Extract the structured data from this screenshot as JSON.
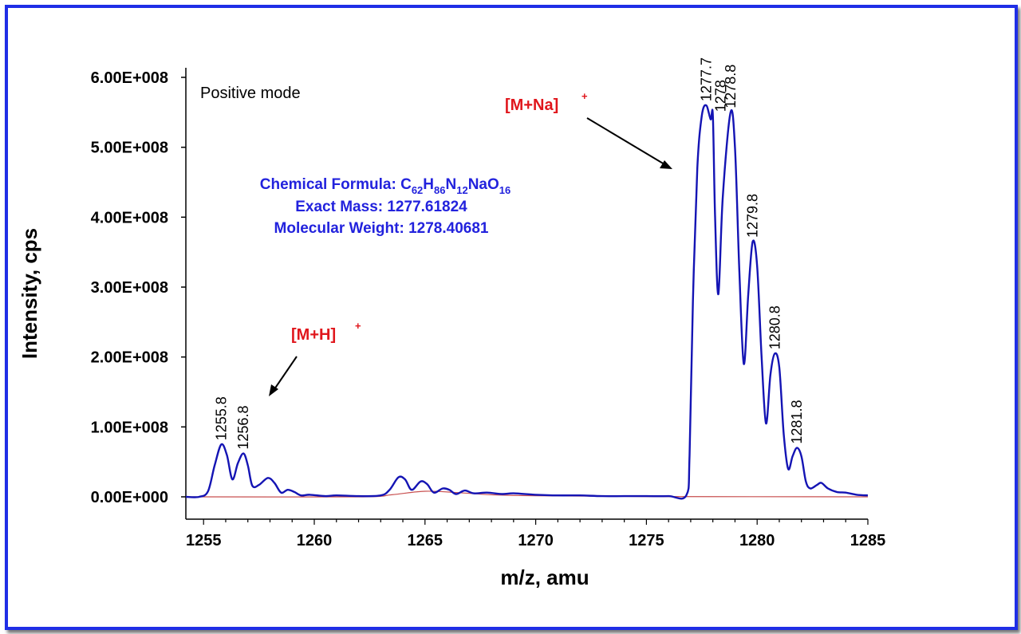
{
  "chart_data": {
    "type": "line",
    "title": "",
    "xlabel": "m/z, amu",
    "ylabel": "Intensity, cps",
    "xlim": [
      1254.2,
      1285
    ],
    "ylim": [
      0,
      600000000
    ],
    "x_ticks": [
      "1255",
      "1260",
      "1265",
      "1270",
      "1275",
      "1280",
      "1285"
    ],
    "y_ticks": [
      "0.00E+000",
      "1.00E+008",
      "2.00E+008",
      "3.00E+008",
      "4.00E+008",
      "5.00E+008",
      "6.00E+008"
    ],
    "grid": false,
    "series": [
      {
        "color": "#1414b4",
        "points": [
          [
            1254.2,
            0
          ],
          [
            1254.8,
            0
          ],
          [
            1255.2,
            8000000
          ],
          [
            1255.5,
            45000000
          ],
          [
            1255.8,
            75000000
          ],
          [
            1256.05,
            60000000
          ],
          [
            1256.3,
            25000000
          ],
          [
            1256.55,
            48000000
          ],
          [
            1256.8,
            62000000
          ],
          [
            1257.0,
            45000000
          ],
          [
            1257.2,
            16000000
          ],
          [
            1257.5,
            17000000
          ],
          [
            1257.9,
            27000000
          ],
          [
            1258.2,
            20000000
          ],
          [
            1258.5,
            6000000
          ],
          [
            1258.8,
            10000000
          ],
          [
            1259.1,
            7000000
          ],
          [
            1259.4,
            2000000
          ],
          [
            1259.8,
            3000000
          ],
          [
            1260.5,
            1000000
          ],
          [
            1261.0,
            2000000
          ],
          [
            1262.0,
            1000000
          ],
          [
            1263.0,
            2000000
          ],
          [
            1263.4,
            10000000
          ],
          [
            1263.8,
            28000000
          ],
          [
            1264.1,
            25000000
          ],
          [
            1264.4,
            10000000
          ],
          [
            1264.8,
            22000000
          ],
          [
            1265.1,
            18000000
          ],
          [
            1265.4,
            6000000
          ],
          [
            1265.8,
            12000000
          ],
          [
            1266.1,
            10000000
          ],
          [
            1266.4,
            4000000
          ],
          [
            1266.8,
            9000000
          ],
          [
            1267.2,
            5000000
          ],
          [
            1267.8,
            6000000
          ],
          [
            1268.5,
            4000000
          ],
          [
            1269.0,
            5000000
          ],
          [
            1270.0,
            3000000
          ],
          [
            1271.0,
            2000000
          ],
          [
            1272.0,
            2000000
          ],
          [
            1273.0,
            1000000
          ],
          [
            1274.0,
            1000000
          ],
          [
            1275.0,
            1000000
          ],
          [
            1276.0,
            1000000
          ],
          [
            1276.8,
            2000000
          ],
          [
            1276.95,
            60000000
          ],
          [
            1277.1,
            280000000
          ],
          [
            1277.3,
            470000000
          ],
          [
            1277.5,
            545000000
          ],
          [
            1277.7,
            560000000
          ],
          [
            1277.9,
            540000000
          ],
          [
            1278.0,
            545000000
          ],
          [
            1278.1,
            400000000
          ],
          [
            1278.25,
            290000000
          ],
          [
            1278.45,
            430000000
          ],
          [
            1278.8,
            550000000
          ],
          [
            1279.0,
            500000000
          ],
          [
            1279.2,
            320000000
          ],
          [
            1279.4,
            190000000
          ],
          [
            1279.6,
            290000000
          ],
          [
            1279.8,
            365000000
          ],
          [
            1280.0,
            330000000
          ],
          [
            1280.2,
            200000000
          ],
          [
            1280.4,
            105000000
          ],
          [
            1280.6,
            175000000
          ],
          [
            1280.8,
            205000000
          ],
          [
            1281.0,
            185000000
          ],
          [
            1281.2,
            90000000
          ],
          [
            1281.4,
            40000000
          ],
          [
            1281.6,
            58000000
          ],
          [
            1281.8,
            70000000
          ],
          [
            1282.0,
            58000000
          ],
          [
            1282.2,
            22000000
          ],
          [
            1282.4,
            12000000
          ],
          [
            1282.7,
            17000000
          ],
          [
            1282.9,
            20000000
          ],
          [
            1283.2,
            12000000
          ],
          [
            1283.6,
            7000000
          ],
          [
            1284.0,
            6000000
          ],
          [
            1284.5,
            3000000
          ],
          [
            1285.0,
            2000000
          ]
        ]
      },
      {
        "color": "#c85050",
        "points": [
          [
            1254.2,
            0
          ],
          [
            1262.0,
            0
          ],
          [
            1263.5,
            3000000
          ],
          [
            1265.0,
            8000000
          ],
          [
            1266.5,
            6000000
          ],
          [
            1268.0,
            3000000
          ],
          [
            1270.0,
            1500000
          ],
          [
            1275.0,
            500000
          ],
          [
            1285.0,
            0
          ]
        ]
      }
    ],
    "peak_labels": [
      {
        "x": 1255.8,
        "y": 75000000,
        "text": "1255.8"
      },
      {
        "x": 1256.8,
        "y": 62000000,
        "text": "1256.8"
      },
      {
        "x": 1277.7,
        "y": 560000000,
        "text": "1277.7"
      },
      {
        "x": 1278.0,
        "y": 545000000,
        "text": "1278"
      },
      {
        "x": 1278.8,
        "y": 550000000,
        "text": "1278.8"
      },
      {
        "x": 1279.8,
        "y": 365000000,
        "text": "1279.8"
      },
      {
        "x": 1280.8,
        "y": 205000000,
        "text": "1280.8"
      },
      {
        "x": 1281.8,
        "y": 70000000,
        "text": "1281.8"
      }
    ],
    "annotations": {
      "mode": "Positive mode",
      "formula_prefix": "Chemical Formula: C",
      "formula_parts": [
        {
          "text": "62",
          "sub": true
        },
        {
          "text": "H",
          "sub": false
        },
        {
          "text": "86",
          "sub": true
        },
        {
          "text": "N",
          "sub": false
        },
        {
          "text": "12",
          "sub": true
        },
        {
          "text": "NaO",
          "sub": false
        },
        {
          "text": "16",
          "sub": true
        }
      ],
      "exact_mass": "Exact Mass: 1277.61824",
      "molecular_weight": "Molecular Weight: 1278.40681",
      "ion_h": "[M+H]",
      "ion_na": "[M+Na]",
      "ion_charge": "+"
    }
  }
}
